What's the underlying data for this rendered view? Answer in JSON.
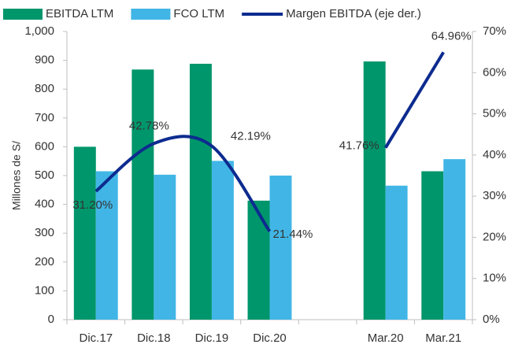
{
  "chart_data": {
    "type": "bar",
    "categories": [
      "Dic.17",
      "Dic.18",
      "Dic.19",
      "Dic.20",
      null,
      "Mar.20",
      "Mar.21"
    ],
    "series": [
      {
        "name": "EBITDA LTM",
        "type": "bar",
        "color": "#00966b",
        "values": [
          600,
          868,
          888,
          413,
          null,
          896,
          515
        ]
      },
      {
        "name": "FCO LTM",
        "type": "bar",
        "color": "#41b6e6",
        "values": [
          515,
          503,
          551,
          500,
          null,
          465,
          557
        ]
      },
      {
        "name": "Margen EBITDA (eje der.)",
        "type": "line",
        "axis": "y2",
        "color": "#0d2b8f",
        "values": [
          31.2,
          42.78,
          42.19,
          21.44,
          null,
          41.76,
          64.96
        ],
        "value_labels": [
          "31.20%",
          "42.78%",
          "42.19%",
          "21.44%",
          null,
          "41.76%",
          "64.96%"
        ]
      }
    ],
    "ylabel": "Millones de S/",
    "ylim": [
      0,
      1000
    ],
    "yticks": [
      0,
      100,
      200,
      300,
      400,
      500,
      600,
      700,
      800,
      900,
      {
        "value": 1000,
        "label": "1,000"
      }
    ],
    "y2lim": [
      0,
      70
    ],
    "y2ticks": [
      {
        "value": 0,
        "label": "0%"
      },
      {
        "value": 10,
        "label": "10%"
      },
      {
        "value": 20,
        "label": "20%"
      },
      {
        "value": 30,
        "label": "30%"
      },
      {
        "value": 40,
        "label": "40%"
      },
      {
        "value": 50,
        "label": "50%"
      },
      {
        "value": 60,
        "label": "60%"
      },
      {
        "value": 70,
        "label": "70%"
      }
    ],
    "legend": "top",
    "grid": false
  }
}
